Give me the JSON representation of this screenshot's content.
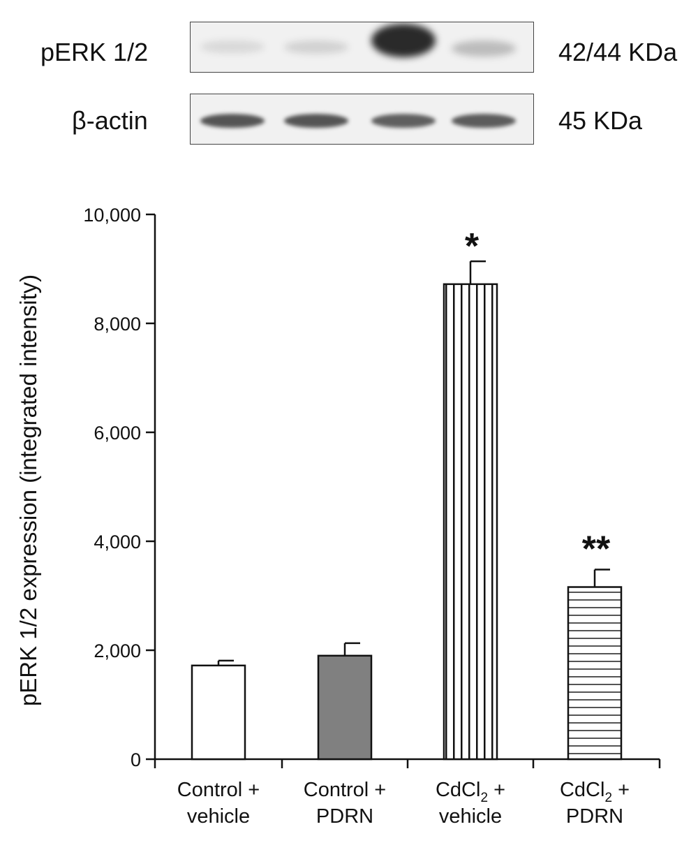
{
  "blot": {
    "rows": [
      {
        "protein": "pERK 1/2",
        "size": "42/44 KDa",
        "band_intensity": [
          0.12,
          0.15,
          0.95,
          0.25
        ]
      },
      {
        "protein": "β-actin",
        "size": "45 KDa",
        "band_intensity": [
          0.75,
          0.75,
          0.7,
          0.72
        ]
      }
    ]
  },
  "chart_data": {
    "type": "bar",
    "ylabel": "pERK 1/2 expression (integrated intensity)",
    "xlabel": "",
    "ylim": [
      0,
      10000
    ],
    "yticks": [
      0,
      2000,
      4000,
      6000,
      8000,
      10000
    ],
    "ytick_labels": [
      "0",
      "2,000",
      "4,000",
      "6,000",
      "8,000",
      "10,000"
    ],
    "categories": [
      {
        "line1": "Control +",
        "line2": "vehicle"
      },
      {
        "line1": "Control +",
        "line2": "PDRN"
      },
      {
        "line1": "CdCl",
        "line1_sub": "2",
        "line1_suffix": " +",
        "line2": "vehicle"
      },
      {
        "line1": "CdCl",
        "line1_sub": "2",
        "line1_suffix": " +",
        "line2": "PDRN"
      }
    ],
    "values": [
      1720,
      1900,
      8720,
      3160
    ],
    "errors": [
      90,
      230,
      420,
      320
    ],
    "significance": [
      "",
      "",
      "*",
      "**"
    ],
    "fills": [
      "white",
      "#808080",
      "vertical-stripes",
      "horizontal-stripes"
    ]
  }
}
